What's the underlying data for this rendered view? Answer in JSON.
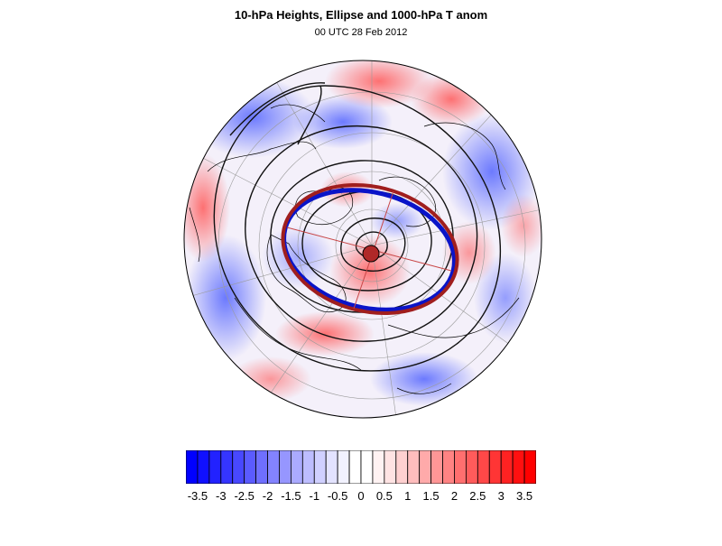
{
  "title": "10-hPa Heights, Ellipse and 1000-hPa T anom",
  "subtitle": "00 UTC 28 Feb 2012",
  "map": {
    "projection": "polar stereographic (north pole)",
    "layers": [
      "1000-hPa temperature anomaly shading",
      "10-hPa height contours",
      "coastlines",
      "lat/lon grid",
      "vortex ellipse"
    ],
    "ellipse_colors": {
      "outer": "#a01e1e",
      "inner": "#0a14c8"
    },
    "ellipse_axis_color": "#c84646"
  },
  "colorbar": {
    "labels": [
      "-3.5",
      "-3",
      "-2.5",
      "-2",
      "-1.5",
      "-1",
      "-0.5",
      "0",
      "0.5",
      "1",
      "1.5",
      "2",
      "2.5",
      "3",
      "3.5"
    ],
    "colors": [
      "#0000ff",
      "#1010ff",
      "#2222ff",
      "#3535ff",
      "#4848ff",
      "#5b5bff",
      "#6f6fff",
      "#8383ff",
      "#9696ff",
      "#aaaaff",
      "#bdbdff",
      "#d0d0ff",
      "#e3e3ff",
      "#f2f2ff",
      "#ffffff",
      "#ffffff",
      "#fff2f2",
      "#ffe3e3",
      "#ffd0d0",
      "#ffbdbd",
      "#ffaaaa",
      "#ff9696",
      "#ff8383",
      "#ff6f6f",
      "#ff5b5b",
      "#ff4848",
      "#ff3535",
      "#ff2222",
      "#ff1010",
      "#ff0000"
    ]
  }
}
